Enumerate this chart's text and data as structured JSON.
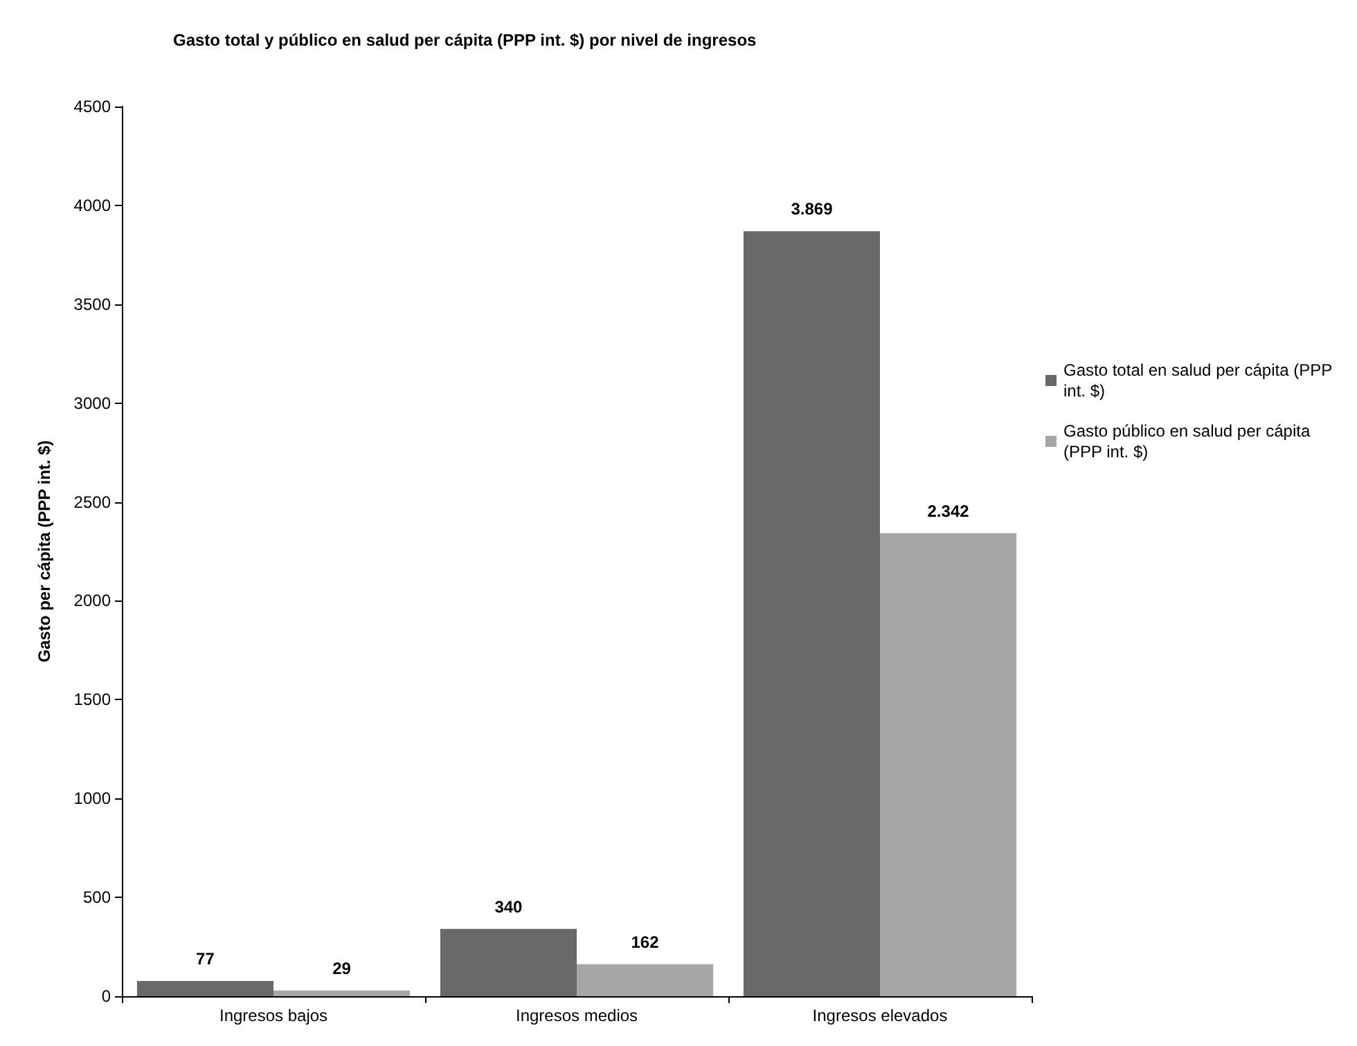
{
  "chart_data": {
    "type": "bar",
    "title": "Gasto total y público en salud per cápita (PPP int. $) por nivel de ingresos",
    "ylabel": "Gasto per cápita (PPP int. $)",
    "categories": [
      "Ingresos bajos",
      "Ingresos medios",
      "Ingresos elevados"
    ],
    "series": [
      {
        "name": "Gasto total en salud per cápita (PPP int. $)",
        "color": "#696969",
        "values": [
          77,
          340,
          3869
        ],
        "value_labels": [
          "77",
          "340",
          "3.869"
        ]
      },
      {
        "name": "Gasto público en salud per cápita (PPP int. $)",
        "color": "#a6a6a6",
        "values": [
          29,
          162,
          2342
        ],
        "value_labels": [
          "29",
          "162",
          "2.342"
        ]
      }
    ],
    "ylim": [
      0,
      4500
    ],
    "yticks": [
      0,
      500,
      1000,
      1500,
      2000,
      2500,
      3000,
      3500,
      4000,
      4500
    ],
    "grid": false,
    "legend": "right"
  }
}
